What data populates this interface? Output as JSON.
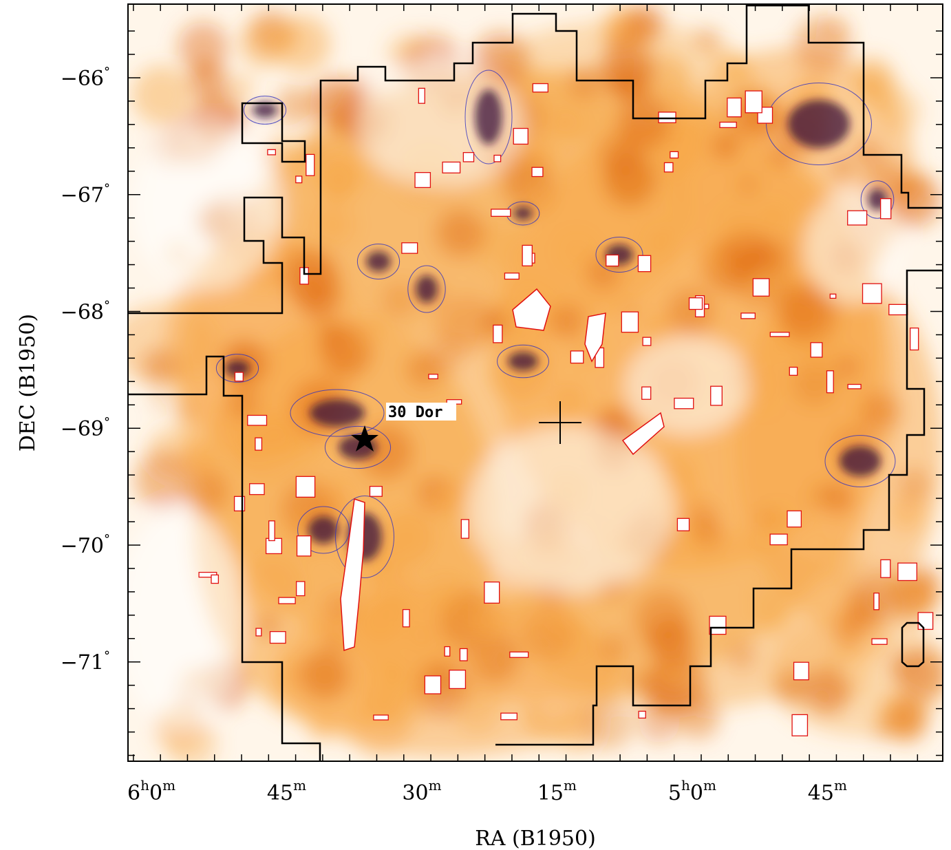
{
  "chart_data": {
    "type": "heatmap",
    "title": "",
    "xlabel": "RA (B1950)",
    "ylabel": "DEC (B1950)",
    "x_axis": {
      "reversed": true,
      "major_ticks": [
        {
          "hour": "6",
          "min": "0",
          "value_minutes": 360
        },
        {
          "hour": "",
          "min": "45",
          "value_minutes": 345
        },
        {
          "hour": "",
          "min": "30",
          "value_minutes": 330
        },
        {
          "hour": "",
          "min": "15",
          "value_minutes": 315
        },
        {
          "hour": "5",
          "min": "0",
          "value_minutes": 300
        },
        {
          "hour": "",
          "min": "45",
          "value_minutes": 285
        }
      ],
      "range_minutes": [
        362.6,
        272.2
      ]
    },
    "y_axis": {
      "major_ticks": [
        {
          "label": "−66",
          "value": -66
        },
        {
          "label": "−67",
          "value": -67
        },
        {
          "label": "−68",
          "value": -68
        },
        {
          "label": "−69",
          "value": -69
        },
        {
          "label": "−70",
          "value": -70
        },
        {
          "label": "−71",
          "value": -71
        }
      ],
      "degree_symbol": "°",
      "range": [
        -71.85,
        -65.37
      ]
    },
    "annotations": [
      {
        "text": "30 Dor",
        "marker": "star",
        "ra_minutes": 338.0,
        "dec": -69.1
      },
      {
        "text": "",
        "marker": "cross",
        "ra_minutes": 318.0,
        "dec": -68.94
      }
    ],
    "colormap": {
      "low": "#ffffff",
      "mid": "#f7a645",
      "high": "#e06a10",
      "peak": "#3a1338",
      "low_contour": "#3030c0",
      "high_contour": "#e01010",
      "survey_boundary": "#000000"
    },
    "survey_boundary_note": "black polygon outlining observed region"
  }
}
